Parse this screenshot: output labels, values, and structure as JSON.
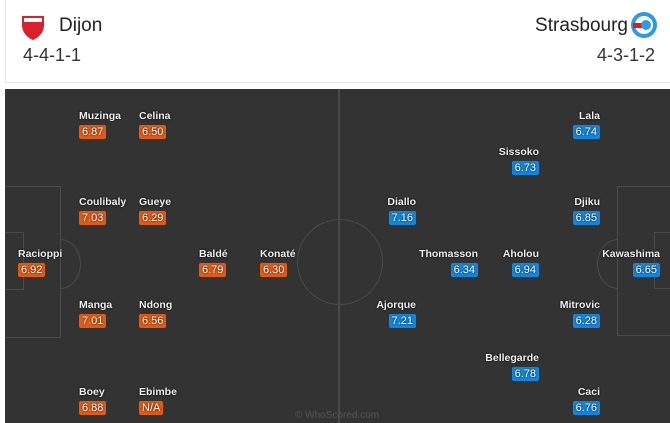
{
  "home": {
    "name": "Dijon",
    "formation": "4-4-1-1",
    "color": "#e55a11",
    "logo": "dijon-crest-icon",
    "players": [
      {
        "name": "Muzinga",
        "rating": "6.87"
      },
      {
        "name": "Celina",
        "rating": "6.50"
      },
      {
        "name": "Coulibaly",
        "rating": "7.03"
      },
      {
        "name": "Gueye",
        "rating": "6.29"
      },
      {
        "name": "Racioppi",
        "rating": "6.92"
      },
      {
        "name": "Baldé",
        "rating": "6.79"
      },
      {
        "name": "Konaté",
        "rating": "6.30"
      },
      {
        "name": "Manga",
        "rating": "7.01"
      },
      {
        "name": "Ndong",
        "rating": "6.56"
      },
      {
        "name": "Boey",
        "rating": "6.88"
      },
      {
        "name": "Ebimbe",
        "rating": "N/A"
      }
    ]
  },
  "away": {
    "name": "Strasbourg",
    "formation": "4-3-1-2",
    "color": "#0f87e0",
    "logo": "strasbourg-crest-icon",
    "players": [
      {
        "name": "Lala",
        "rating": "6.74"
      },
      {
        "name": "Sissoko",
        "rating": "6.73"
      },
      {
        "name": "Diallo",
        "rating": "7.16"
      },
      {
        "name": "Djiku",
        "rating": "6.85"
      },
      {
        "name": "Thomasson",
        "rating": "6.34"
      },
      {
        "name": "Aholou",
        "rating": "6.94"
      },
      {
        "name": "Kawashima",
        "rating": "6.65"
      },
      {
        "name": "Ajorque",
        "rating": "7.21"
      },
      {
        "name": "Mitrovic",
        "rating": "6.28"
      },
      {
        "name": "Bellegarde",
        "rating": "6.78"
      },
      {
        "name": "Caci",
        "rating": "6.76"
      }
    ]
  },
  "watermark": "© WhoScored.com"
}
